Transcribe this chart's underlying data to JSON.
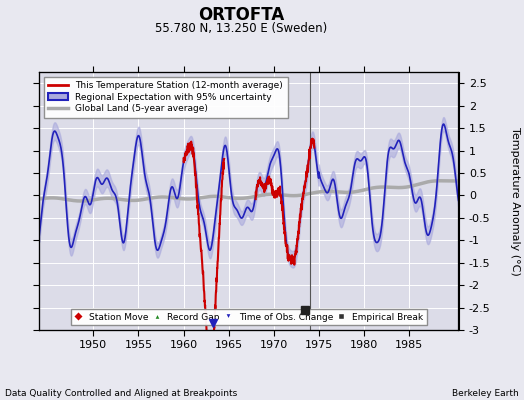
{
  "title": "ORTOFTA",
  "subtitle": "55.780 N, 13.250 E (Sweden)",
  "ylabel": "Temperature Anomaly (°C)",
  "xlabel_bottom_left": "Data Quality Controlled and Aligned at Breakpoints",
  "xlabel_bottom_right": "Berkeley Earth",
  "ylim": [
    -3,
    2.75
  ],
  "xlim": [
    1944.0,
    1990.5
  ],
  "yticks": [
    -3,
    -2.5,
    -2,
    -1.5,
    -1,
    -0.5,
    0,
    0.5,
    1,
    1.5,
    2,
    2.5
  ],
  "xticks": [
    1950,
    1955,
    1960,
    1965,
    1970,
    1975,
    1980,
    1985
  ],
  "bg_color": "#e8e8f0",
  "plot_bg_color": "#dcdce8",
  "regional_color": "#2222bb",
  "regional_fill_color": "#aaaadd",
  "station_color": "#cc0000",
  "global_color": "#aaaaaa",
  "vline_year": 1974.0,
  "empirical_break_year": 1973.5,
  "empirical_break_value": -2.55,
  "time_of_obs_year": 1963.3,
  "marker_legend": [
    {
      "label": "Station Move",
      "color": "#cc0000",
      "marker": "D"
    },
    {
      "label": "Record Gap",
      "color": "#228822",
      "marker": "^"
    },
    {
      "label": "Time of Obs. Change",
      "color": "#2222bb",
      "marker": "v"
    },
    {
      "label": "Empirical Break",
      "color": "#333333",
      "marker": "s"
    }
  ]
}
